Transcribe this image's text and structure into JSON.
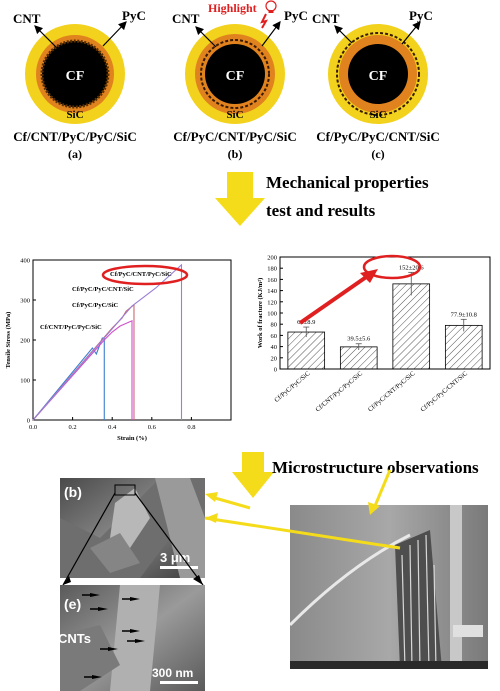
{
  "schematics": [
    {
      "core": "CF",
      "outer": "SiC",
      "left_label": "CNT",
      "right_label": "PyC",
      "composition": "Cf/CNT/PyC/PyC/SiC",
      "sublabel": "(a)"
    },
    {
      "core": "CF",
      "outer": "SiC",
      "left_label": "CNT",
      "right_label": "PyC",
      "composition": "Cf/PyC/CNT/PyC/SiC",
      "sublabel": "(b)",
      "highlight": "Highlight"
    },
    {
      "core": "CF",
      "outer": "SiC",
      "left_label": "CNT",
      "right_label": "PyC",
      "composition": "Cf/PyC/PyC/CNT/SiC",
      "sublabel": "(c)"
    }
  ],
  "steps": {
    "mechanical_line1": "Mechanical properties",
    "mechanical_line2": "test and results",
    "microstructure": "Microstructure  observations"
  },
  "colors": {
    "sic": "#f2d21c",
    "pyc": "#e0821e",
    "cf": "#000000",
    "arrow_yellow": "#f5dc1a",
    "highlight_red": "#e02020"
  },
  "chart_data": [
    {
      "type": "line",
      "xlabel": "Strain (%)",
      "ylabel": "Tensile Stress (MPa)",
      "xlim": [
        0,
        1.0
      ],
      "ylim": [
        0,
        400
      ],
      "xticks": [
        "0.0",
        "0.2",
        "0.4",
        "0.6",
        "0.8"
      ],
      "yticks": [
        "0",
        "100",
        "200",
        "300",
        "400"
      ],
      "series": [
        {
          "name": "Cf/CNT/PyC/PyC/SiC",
          "color": "#3a7fd0",
          "x": [
            0,
            0.3,
            0.32,
            0.35,
            0.36,
            0.36
          ],
          "y": [
            0,
            180,
            165,
            205,
            205,
            0
          ]
        },
        {
          "name": "Cf/PyC/PyC/SiC",
          "color": "#d050c8",
          "x": [
            0,
            0.36,
            0.4,
            0.44,
            0.5,
            0.5
          ],
          "y": [
            0,
            200,
            220,
            235,
            248,
            0
          ]
        },
        {
          "name": "Cf/PyC/PyC/CNT/SiC",
          "color": "#c86870",
          "x": [
            0,
            0.4,
            0.45,
            0.47,
            0.51,
            0.51
          ],
          "y": [
            0,
            230,
            255,
            272,
            288,
            0
          ]
        },
        {
          "name": "Cf/PyC/CNT/PyC/SiC",
          "color": "#9a7fd6",
          "x": [
            0,
            0.5,
            0.62,
            0.75,
            0.75
          ],
          "y": [
            0,
            285,
            330,
            388,
            0
          ]
        }
      ],
      "highlighted": "Cf/PyC/CNT/PyC/SiC"
    },
    {
      "type": "bar",
      "ylabel": "Work of fracture (KJ/m²)",
      "ylim": [
        0,
        200
      ],
      "yticks": [
        "0",
        "20",
        "40",
        "60",
        "80",
        "100",
        "120",
        "140",
        "160",
        "180",
        "200"
      ],
      "categories": [
        "Cf/PyC/PyC/SiC",
        "Cf/CNT/PyC/PyC/SiC",
        "Cf/PyC/CNT/PyC/SiC",
        "Cf/PyC/PyC/CNT/SiC"
      ],
      "values": [
        66,
        39.5,
        152,
        77.9
      ],
      "errors": [
        8.9,
        5.6,
        20.6,
        10.8
      ],
      "value_labels": [
        "66±8.9",
        "39.5±5.6",
        "152±20.6",
        "77.9±10.8"
      ]
    }
  ],
  "micrographs": {
    "b_label": "(b)",
    "b_scale": "3 μm",
    "e_label": "(e)",
    "e_scale": "300 nm",
    "e_annotation": "CNTs"
  }
}
